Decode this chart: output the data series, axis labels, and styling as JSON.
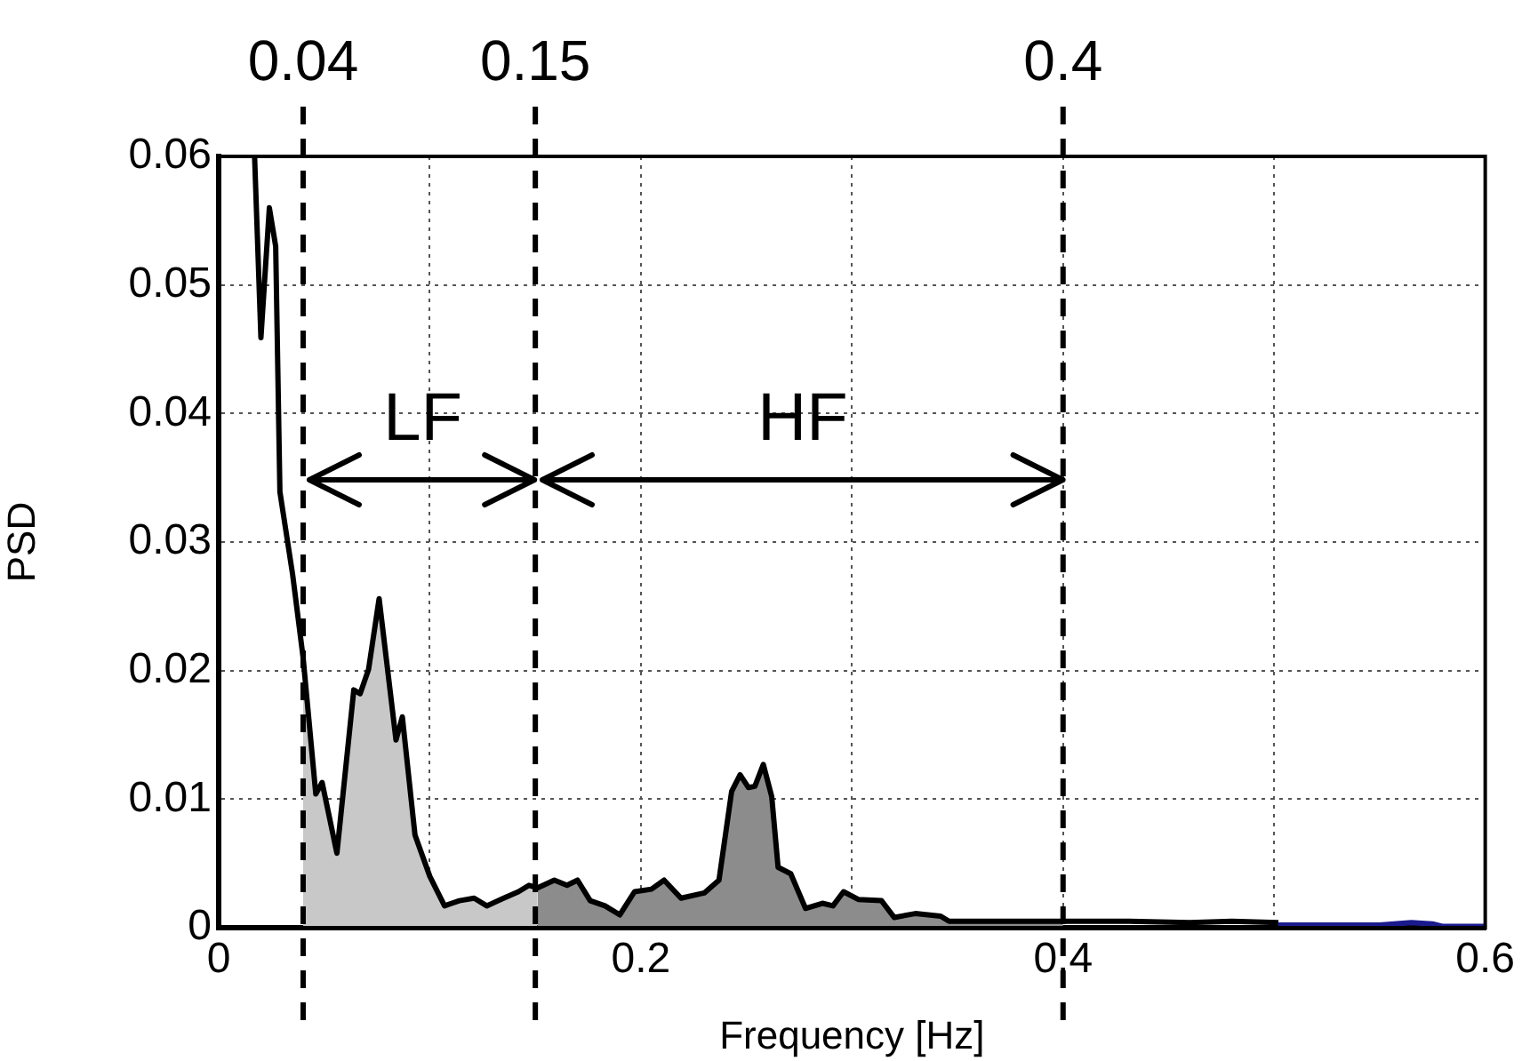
{
  "chart_data": {
    "type": "line",
    "xlabel": "Frequency [Hz]",
    "ylabel": "PSD",
    "xlim": [
      0,
      0.6
    ],
    "xticks": [
      0,
      {
        "value": 0.1,
        "label": null
      },
      0.2,
      {
        "value": 0.3,
        "label": null
      },
      0.4,
      {
        "value": 0.5,
        "label": null
      },
      0.6
    ],
    "ylim": [
      0,
      0.06
    ],
    "yticks": [
      0,
      0.01,
      0.02,
      0.03,
      0.04,
      0.05,
      0.06
    ],
    "grid": true,
    "legend": false,
    "marker": "none",
    "line_style": "solid",
    "series": [
      {
        "type": "area",
        "color": "#c8c8c8",
        "x": [
          0.04,
          0.046,
          0.049,
          0.056,
          0.064,
          0.067,
          0.071,
          0.076,
          0.084,
          0.087,
          0.093,
          0.1,
          0.107,
          0.114,
          0.121,
          0.127,
          0.135,
          0.142,
          0.147,
          0.151
        ],
        "values": [
          0.021,
          0.0104,
          0.0113,
          0.0058,
          0.0185,
          0.0182,
          0.0201,
          0.0256,
          0.0146,
          0.0164,
          0.0072,
          0.004,
          0.0017,
          0.0021,
          0.0023,
          0.0017,
          0.0023,
          0.0028,
          0.0033,
          0.0031
        ]
      },
      {
        "type": "area",
        "color": "#8c8c8c",
        "x": [
          0.151,
          0.159,
          0.165,
          0.17,
          0.176,
          0.183,
          0.19,
          0.197,
          0.205,
          0.211,
          0.219,
          0.23,
          0.237,
          0.243,
          0.247,
          0.251,
          0.254,
          0.258,
          0.262,
          0.265,
          0.271,
          0.278,
          0.286,
          0.291,
          0.296,
          0.303,
          0.314,
          0.32,
          0.33,
          0.342,
          0.346,
          0.4
        ],
        "values": [
          0.0031,
          0.0037,
          0.0033,
          0.0037,
          0.0021,
          0.0017,
          0.001,
          0.0028,
          0.003,
          0.0037,
          0.0023,
          0.0027,
          0.0037,
          0.0106,
          0.0119,
          0.0109,
          0.011,
          0.0127,
          0.0102,
          0.0047,
          0.0042,
          0.0015,
          0.0019,
          0.0017,
          0.0028,
          0.0022,
          0.0021,
          0.0008,
          0.0011,
          0.0009,
          0.0005,
          0.0005
        ]
      },
      {
        "type": "line",
        "color": "#000000",
        "x": [
          0.017,
          0.02,
          0.024,
          0.027,
          0.029,
          0.035,
          0.04,
          0.046,
          0.049,
          0.056,
          0.064,
          0.067,
          0.071,
          0.076,
          0.084,
          0.087,
          0.093,
          0.1,
          0.107,
          0.114,
          0.121,
          0.127,
          0.135,
          0.142,
          0.147,
          0.151,
          0.159,
          0.165,
          0.17,
          0.176,
          0.183,
          0.19,
          0.197,
          0.205,
          0.211,
          0.219,
          0.23,
          0.237,
          0.243,
          0.247,
          0.251,
          0.254,
          0.258,
          0.262,
          0.265,
          0.271,
          0.278,
          0.286,
          0.291,
          0.296,
          0.303,
          0.314,
          0.32,
          0.33,
          0.342,
          0.346,
          0.4,
          0.43,
          0.46,
          0.48,
          0.502
        ],
        "values": [
          0.06,
          0.0459,
          0.056,
          0.053,
          0.0339,
          0.0275,
          0.021,
          0.0104,
          0.0113,
          0.0058,
          0.0185,
          0.0182,
          0.0201,
          0.0256,
          0.0146,
          0.0164,
          0.0072,
          0.004,
          0.0017,
          0.0021,
          0.0023,
          0.0017,
          0.0023,
          0.0028,
          0.0033,
          0.0031,
          0.0037,
          0.0033,
          0.0037,
          0.0021,
          0.0017,
          0.001,
          0.0028,
          0.003,
          0.0037,
          0.0023,
          0.0027,
          0.0037,
          0.0106,
          0.0119,
          0.0109,
          0.011,
          0.0127,
          0.0102,
          0.0047,
          0.0042,
          0.0015,
          0.0019,
          0.0017,
          0.0028,
          0.0022,
          0.0021,
          0.0008,
          0.0011,
          0.0009,
          0.0005,
          0.0005,
          0.0005,
          0.0004,
          0.0005,
          0.0004
        ]
      },
      {
        "type": "line",
        "color": "#1a1a8c",
        "x": [
          0.502,
          0.55,
          0.565,
          0.575,
          0.58,
          0.6
        ],
        "values": [
          0.0002,
          0.0002,
          0.0004,
          0.0003,
          0.0001,
          0.0001
        ]
      }
    ],
    "ref_lines": [
      {
        "axis": "x",
        "value": 0.04,
        "label": "0.04",
        "line_style": "dashed",
        "color": "#000000"
      },
      {
        "axis": "x",
        "value": 0.15,
        "label": "0.15",
        "line_style": "dashed",
        "color": "#000000"
      },
      {
        "axis": "x",
        "value": 0.4,
        "label": "0.4",
        "line_style": "dashed",
        "color": "#000000"
      }
    ],
    "annotations": [
      "LF",
      "HF"
    ]
  }
}
